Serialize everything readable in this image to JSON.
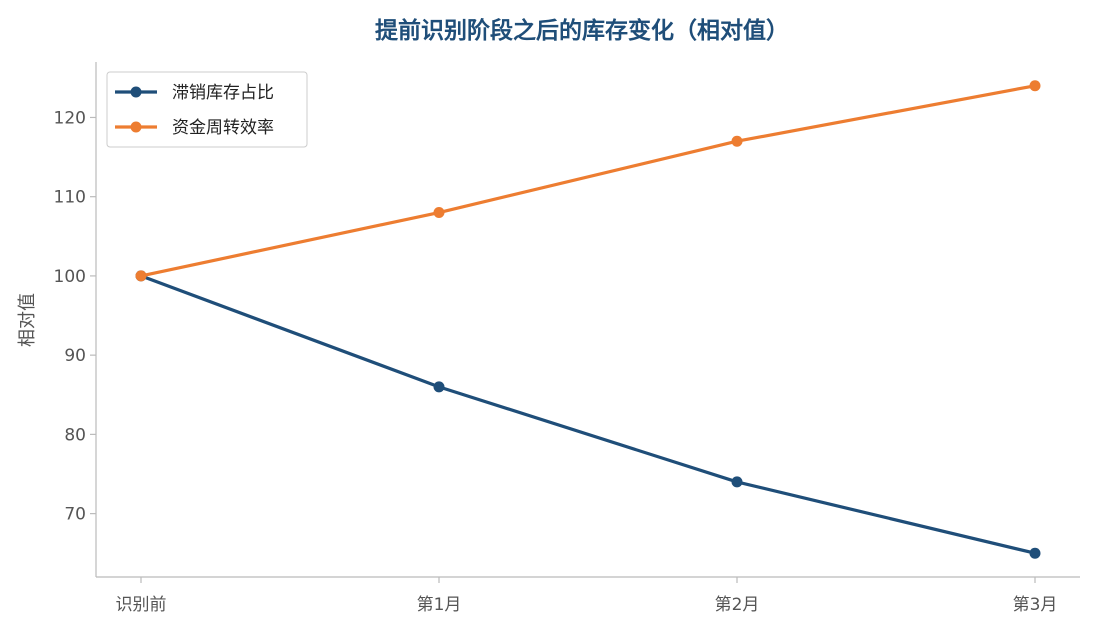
{
  "chart_data": {
    "type": "line",
    "title": "提前识别阶段之后的库存变化（相对值）",
    "xlabel": "",
    "ylabel": "相对值",
    "categories": [
      "识别前",
      "第1月",
      "第2月",
      "第3月"
    ],
    "series": [
      {
        "name": "滞销库存占比",
        "values": [
          100,
          86,
          74,
          65
        ],
        "color": "#1f4e79"
      },
      {
        "name": "资金周转效率",
        "values": [
          100,
          108,
          117,
          124
        ],
        "color": "#ed7d31"
      }
    ],
    "ylim": [
      62,
      127
    ],
    "yticks": [
      70,
      80,
      90,
      100,
      110,
      120
    ],
    "grid": false,
    "legend_position": "top-left"
  }
}
